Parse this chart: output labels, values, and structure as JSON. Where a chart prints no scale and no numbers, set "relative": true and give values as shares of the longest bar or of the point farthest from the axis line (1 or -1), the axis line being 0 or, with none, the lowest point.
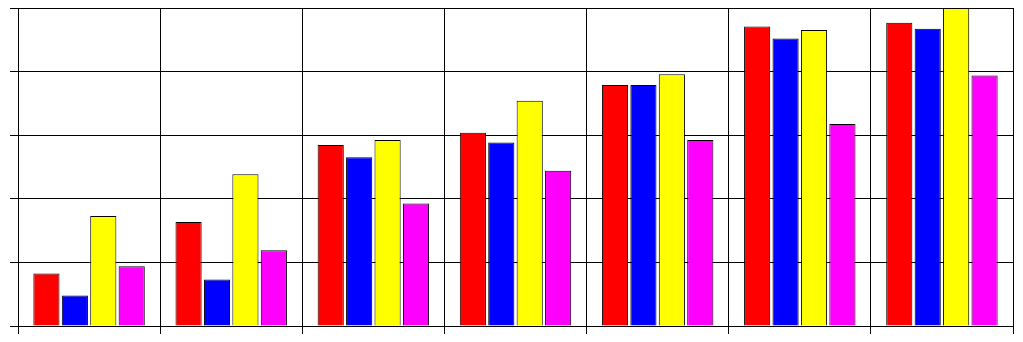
{
  "chart_data": {
    "type": "bar",
    "relative": true,
    "grid": true,
    "legend": false,
    "categories": [
      null,
      null,
      null,
      null,
      null,
      null,
      null
    ],
    "series": [
      {
        "color": "#ff0000",
        "values": [
          0.165,
          0.327,
          0.569,
          0.608,
          0.758,
          0.942,
          0.954
        ]
      },
      {
        "color": "#0000ff",
        "values": [
          0.096,
          0.146,
          0.531,
          0.577,
          0.758,
          0.904,
          0.935
        ]
      },
      {
        "color": "#ffff00",
        "values": [
          0.346,
          0.477,
          0.585,
          0.708,
          0.792,
          0.931,
          1
        ]
      },
      {
        "color": "#ff00ff",
        "values": [
          0.188,
          0.238,
          0.385,
          0.488,
          0.585,
          0.635,
          0.788
        ]
      }
    ]
  }
}
